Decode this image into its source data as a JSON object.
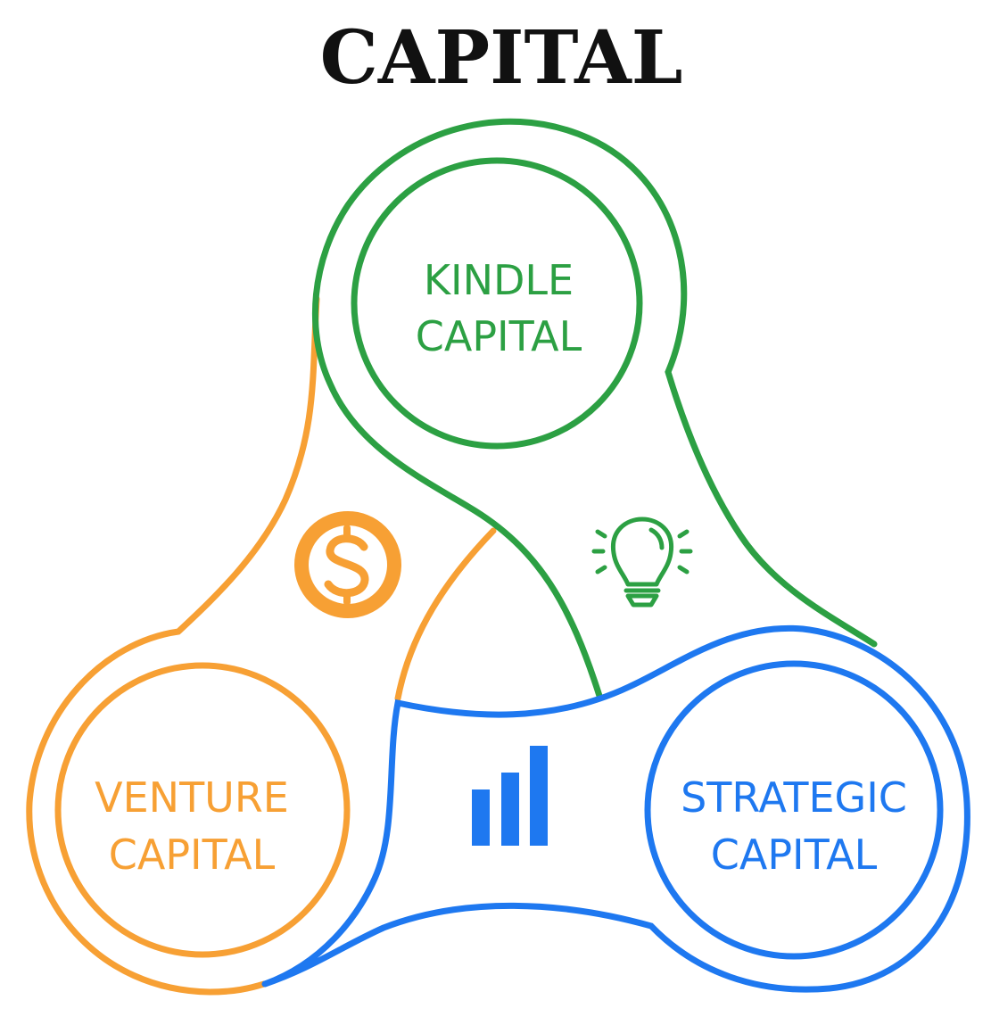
{
  "title": "CAPITAL",
  "colors": {
    "kindle": "#2ca043",
    "venture": "#f7a034",
    "strategic": "#1e78f0",
    "title": "#111111",
    "background": "#ffffff"
  },
  "nodes": {
    "kindle": {
      "line1": "KINDLE",
      "line2": "CAPITAL"
    },
    "venture": {
      "line1": "VENTURE",
      "line2": "CAPITAL"
    },
    "strategic": {
      "line1": "STRATEGIC",
      "line2": "CAPITAL"
    }
  },
  "icons": {
    "venture": "dollar-coin-icon",
    "kindle": "lightbulb-icon",
    "strategic": "bar-chart-icon"
  }
}
